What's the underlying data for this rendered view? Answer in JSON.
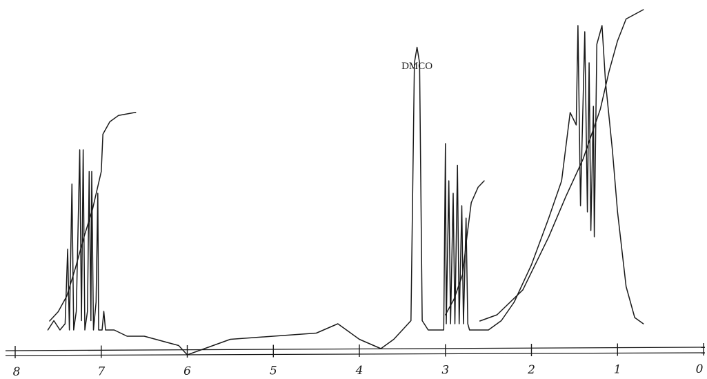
{
  "chart_data": {
    "type": "line",
    "title": "",
    "xlabel": "",
    "ylabel": "",
    "x_unit": "ppm",
    "xlim": [
      8,
      0
    ],
    "x_reversed": true,
    "ticks": [
      {
        "value": 8,
        "label": "8"
      },
      {
        "value": 7,
        "label": "7"
      },
      {
        "value": 6,
        "label": "6"
      },
      {
        "value": 5,
        "label": "5"
      },
      {
        "value": 4,
        "label": "4"
      },
      {
        "value": 3,
        "label": "3"
      },
      {
        "value": 2,
        "label": "2"
      },
      {
        "value": 1,
        "label": "1"
      },
      {
        "value": 0,
        "label": "0"
      }
    ],
    "annotations": [
      {
        "text": "DMCO",
        "x": 3.33
      }
    ],
    "grid": false,
    "legend": "none",
    "color": "#1a1a1a",
    "series": [
      {
        "kind": "spectrum",
        "relative_intensity": true,
        "points": [
          [
            7.62,
            0.0
          ],
          [
            7.55,
            0.03
          ],
          [
            7.48,
            0.0
          ],
          [
            7.42,
            0.02
          ],
          [
            7.39,
            0.26
          ],
          [
            7.37,
            0.0
          ],
          [
            7.34,
            0.47
          ],
          [
            7.32,
            0.0
          ],
          [
            7.29,
            0.06
          ],
          [
            7.25,
            0.58
          ],
          [
            7.23,
            0.03
          ],
          [
            7.21,
            0.58
          ],
          [
            7.19,
            0.0
          ],
          [
            7.16,
            0.06
          ],
          [
            7.14,
            0.51
          ],
          [
            7.12,
            0.03
          ],
          [
            7.11,
            0.51
          ],
          [
            7.09,
            0.0
          ],
          [
            7.06,
            0.09
          ],
          [
            7.04,
            0.44
          ],
          [
            7.03,
            0.0
          ],
          [
            6.99,
            0.0
          ],
          [
            6.97,
            0.06
          ],
          [
            6.95,
            0.0
          ],
          [
            6.93,
            0.0
          ],
          [
            6.85,
            0.0
          ],
          [
            6.7,
            -0.02
          ],
          [
            6.5,
            -0.02
          ],
          [
            6.1,
            -0.05
          ],
          [
            6.0,
            -0.08
          ],
          [
            5.8,
            -0.06
          ],
          [
            5.5,
            -0.03
          ],
          [
            5.0,
            -0.02
          ],
          [
            4.5,
            -0.01
          ],
          [
            4.25,
            0.02
          ],
          [
            4.0,
            -0.03
          ],
          [
            3.75,
            -0.06
          ],
          [
            3.6,
            -0.03
          ],
          [
            3.5,
            0.0
          ],
          [
            3.4,
            0.03
          ],
          [
            3.36,
            0.86
          ],
          [
            3.33,
            0.91
          ],
          [
            3.3,
            0.86
          ],
          [
            3.27,
            0.03
          ],
          [
            3.2,
            0.0
          ],
          [
            3.1,
            0.0
          ],
          [
            3.02,
            0.0
          ],
          [
            3.0,
            0.6
          ],
          [
            2.99,
            0.02
          ],
          [
            2.96,
            0.48
          ],
          [
            2.94,
            0.02
          ],
          [
            2.91,
            0.44
          ],
          [
            2.89,
            0.02
          ],
          [
            2.86,
            0.53
          ],
          [
            2.84,
            0.02
          ],
          [
            2.81,
            0.4
          ],
          [
            2.79,
            0.02
          ],
          [
            2.76,
            0.36
          ],
          [
            2.74,
            0.02
          ],
          [
            2.72,
            0.0
          ],
          [
            2.6,
            0.0
          ],
          [
            2.5,
            0.0
          ],
          [
            2.35,
            0.03
          ],
          [
            2.2,
            0.09
          ],
          [
            2.0,
            0.21
          ],
          [
            1.8,
            0.36
          ],
          [
            1.65,
            0.48
          ],
          [
            1.55,
            0.7
          ],
          [
            1.48,
            0.66
          ],
          [
            1.46,
            0.98
          ],
          [
            1.43,
            0.4
          ],
          [
            1.38,
            0.96
          ],
          [
            1.35,
            0.38
          ],
          [
            1.33,
            0.86
          ],
          [
            1.31,
            0.32
          ],
          [
            1.28,
            0.72
          ],
          [
            1.27,
            0.3
          ],
          [
            1.24,
            0.92
          ],
          [
            1.18,
            0.98
          ],
          [
            1.14,
            0.8
          ],
          [
            1.06,
            0.58
          ],
          [
            1.0,
            0.38
          ],
          [
            0.9,
            0.14
          ],
          [
            0.8,
            0.04
          ],
          [
            0.7,
            0.02
          ]
        ]
      },
      {
        "kind": "integral",
        "relative_intensity": true,
        "segments": [
          [
            [
              7.6,
              0.0
            ],
            [
              7.5,
              0.03
            ],
            [
              7.4,
              0.08
            ],
            [
              7.3,
              0.17
            ],
            [
              7.2,
              0.27
            ],
            [
              7.1,
              0.36
            ],
            [
              7.0,
              0.48
            ],
            [
              6.98,
              0.6
            ],
            [
              6.9,
              0.64
            ],
            [
              6.8,
              0.66
            ],
            [
              6.6,
              0.67
            ]
          ],
          [
            [
              3.0,
              0.02
            ],
            [
              2.9,
              0.07
            ],
            [
              2.8,
              0.15
            ],
            [
              2.75,
              0.27
            ],
            [
              2.7,
              0.38
            ],
            [
              2.62,
              0.43
            ],
            [
              2.55,
              0.45
            ]
          ],
          [
            [
              2.6,
              0.0
            ],
            [
              2.4,
              0.02
            ],
            [
              2.1,
              0.1
            ],
            [
              1.8,
              0.27
            ],
            [
              1.6,
              0.4
            ],
            [
              1.4,
              0.52
            ],
            [
              1.2,
              0.68
            ],
            [
              1.1,
              0.8
            ],
            [
              1.0,
              0.9
            ],
            [
              0.9,
              0.97
            ],
            [
              0.7,
              1.0
            ]
          ]
        ]
      }
    ]
  }
}
